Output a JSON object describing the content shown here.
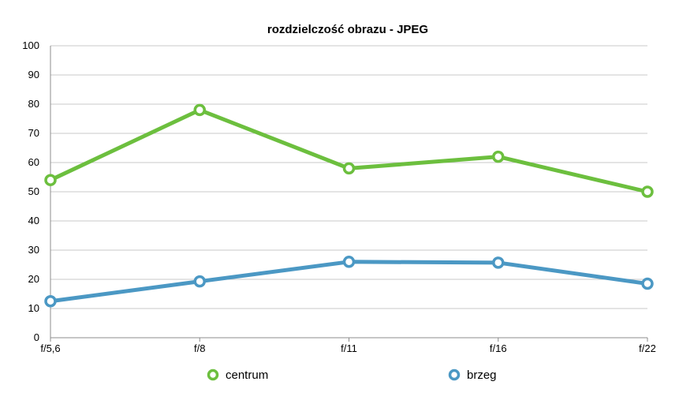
{
  "chart_data": {
    "type": "line",
    "title": "rozdzielczość obrazu - JPEG",
    "xlabel": "",
    "ylabel": "",
    "categories": [
      "f/5,6",
      "f/8",
      "f/11",
      "f/16",
      "f/22"
    ],
    "ylim": [
      0,
      100
    ],
    "yticks": [
      0,
      10,
      20,
      30,
      40,
      50,
      60,
      70,
      80,
      90,
      100
    ],
    "grid": true,
    "legend_position": "bottom",
    "series": [
      {
        "name": "centrum",
        "color": "#6cbf3e",
        "values": [
          54,
          78,
          58,
          62,
          50
        ]
      },
      {
        "name": "brzeg",
        "color": "#4b98c4",
        "values": [
          12.5,
          19.3,
          26,
          25.7,
          18.5
        ]
      }
    ]
  }
}
